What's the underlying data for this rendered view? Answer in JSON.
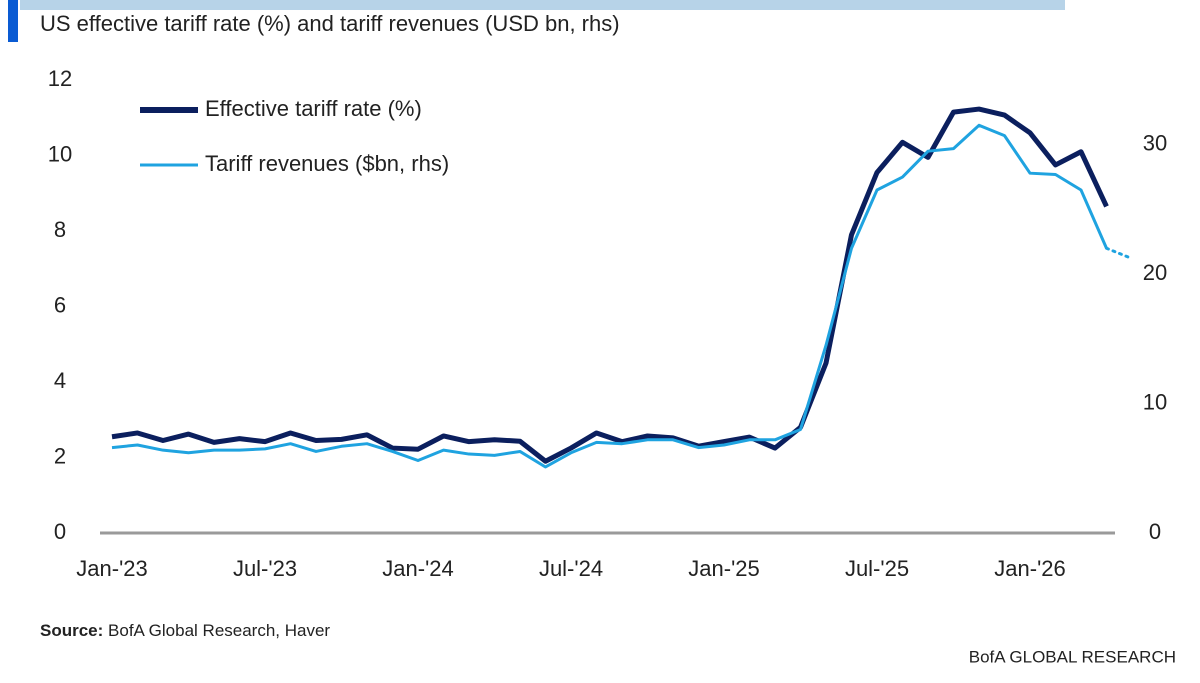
{
  "subtitle": "US effective tariff rate (%) and tariff revenues (USD bn, rhs)",
  "chart_data": {
    "type": "line",
    "categories": [
      "Jan-'23",
      null,
      null,
      null,
      null,
      null,
      "Jul-'23",
      null,
      null,
      null,
      null,
      null,
      "Jan-'24",
      null,
      null,
      null,
      null,
      null,
      "Jul-'24",
      null,
      null,
      null,
      null,
      null,
      "Jan-'25",
      null,
      null,
      null,
      null,
      null,
      "Jul-'25",
      null,
      null,
      null,
      null,
      null,
      "Jan-'26",
      null,
      null,
      null,
      null
    ],
    "series": [
      {
        "name": "Effective tariff rate (%)",
        "color": "#0b1f5e",
        "values": [
          2.55,
          2.65,
          2.45,
          2.62,
          2.4,
          2.5,
          2.42,
          2.65,
          2.45,
          2.48,
          2.6,
          2.25,
          2.22,
          2.57,
          2.42,
          2.47,
          2.43,
          1.9,
          2.25,
          2.65,
          2.42,
          2.57,
          2.52,
          2.3,
          2.42,
          2.54,
          2.25,
          2.8,
          4.5,
          7.9,
          9.55,
          10.35,
          9.95,
          11.15,
          11.23,
          11.07,
          10.6,
          9.75,
          10.1,
          8.65,
          null
        ]
      },
      {
        "name": "Tariff revenues ($bn, rhs)",
        "color": "#1fa3e0",
        "axis": "y2",
        "dotted_from": 39,
        "values": [
          6.6,
          6.8,
          6.4,
          6.2,
          6.4,
          6.4,
          6.5,
          6.9,
          6.3,
          6.7,
          6.9,
          6.3,
          5.6,
          6.4,
          6.1,
          6.0,
          6.3,
          5.1,
          6.2,
          7.0,
          6.9,
          7.2,
          7.2,
          6.6,
          6.8,
          7.2,
          7.2,
          8.0,
          14.5,
          22,
          26.5,
          27.5,
          29.5,
          29.7,
          31.5,
          30.7,
          27.8,
          27.7,
          26.5,
          22,
          21.2
        ]
      }
    ],
    "ylim": [
      0,
      12
    ],
    "yticks": [
      0,
      2,
      4,
      6,
      8,
      10,
      12
    ],
    "y2lim": [
      0,
      35
    ],
    "y2ticks": [
      0,
      10,
      20,
      30
    ],
    "grid": false,
    "legend": "top-left"
  },
  "source": {
    "label": "Source:",
    "text": "BofA Global Research, Haver"
  },
  "footer": "BofA GLOBAL RESEARCH"
}
